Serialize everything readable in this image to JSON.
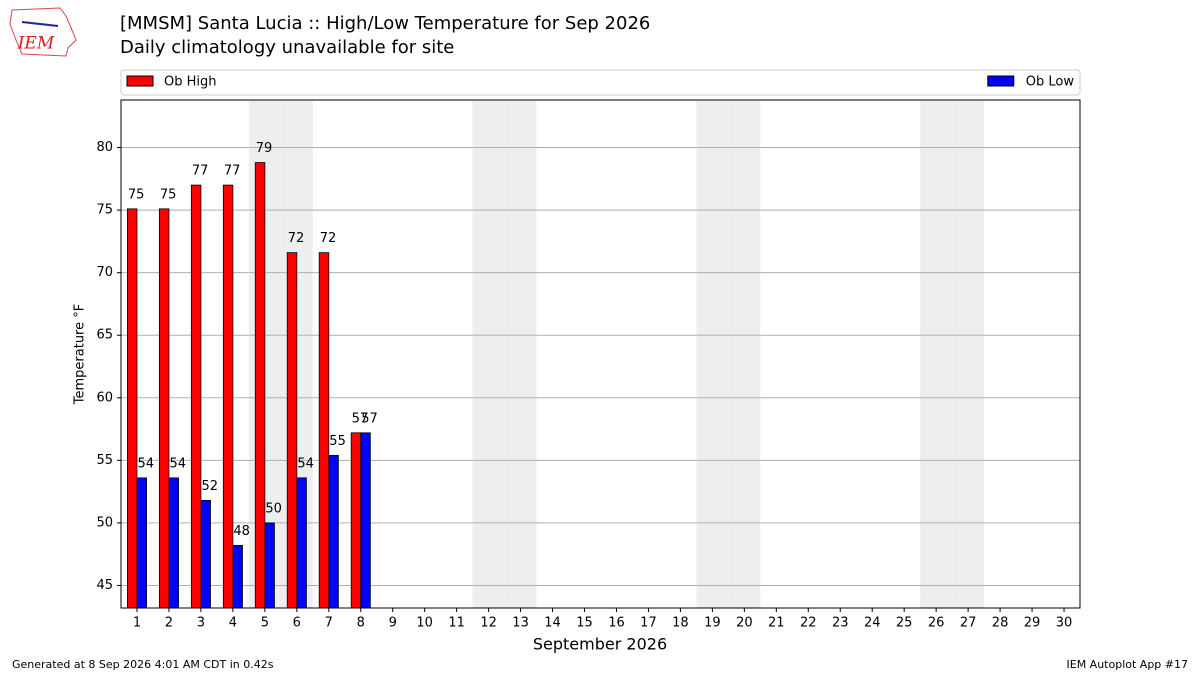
{
  "chart_data": {
    "type": "bar",
    "title": "[MMSM] Santa Lucia :: High/Low Temperature for Sep 2026",
    "subtitle": "Daily climatology unavailable for site",
    "logo_text": "IEM",
    "x_label": "September 2026",
    "y_label": "Temperature °F",
    "footer_left": "Generated at 8 Sep 2026 4:01 AM CDT in 0.42s",
    "footer_right": "IEM Autoplot App #17",
    "categories": [
      "1",
      "2",
      "3",
      "4",
      "5",
      "6",
      "7",
      "8",
      "9",
      "10",
      "11",
      "12",
      "13",
      "14",
      "15",
      "16",
      "17",
      "18",
      "19",
      "20",
      "21",
      "22",
      "23",
      "24",
      "25",
      "26",
      "27",
      "28",
      "29",
      "30"
    ],
    "shaded_days": [
      5,
      6,
      12,
      13,
      19,
      20,
      26,
      27
    ],
    "series": [
      {
        "name": "Ob High",
        "color": "#ff0000",
        "values": [
          75.1,
          75.1,
          77.0,
          77.0,
          78.8,
          71.6,
          71.6,
          57.2,
          null,
          null,
          null,
          null,
          null,
          null,
          null,
          null,
          null,
          null,
          null,
          null,
          null,
          null,
          null,
          null,
          null,
          null,
          null,
          null,
          null,
          null
        ],
        "value_labels": [
          "75",
          "75",
          "77",
          "77",
          "79",
          "72",
          "72",
          "57",
          null,
          null,
          null,
          null,
          null,
          null,
          null,
          null,
          null,
          null,
          null,
          null,
          null,
          null,
          null,
          null,
          null,
          null,
          null,
          null,
          null,
          null
        ]
      },
      {
        "name": "Ob Low",
        "color": "#0000ff",
        "values": [
          53.6,
          53.6,
          51.8,
          48.2,
          50.0,
          53.6,
          55.4,
          57.2,
          null,
          null,
          null,
          null,
          null,
          null,
          null,
          null,
          null,
          null,
          null,
          null,
          null,
          null,
          null,
          null,
          null,
          null,
          null,
          null,
          null,
          null
        ],
        "value_labels": [
          "54",
          "54",
          "52",
          "48",
          "50",
          "54",
          "55",
          "57",
          null,
          null,
          null,
          null,
          null,
          null,
          null,
          null,
          null,
          null,
          null,
          null,
          null,
          null,
          null,
          null,
          null,
          null,
          null,
          null,
          null,
          null
        ]
      }
    ],
    "ylim": [
      43.2,
      83.8
    ],
    "yticks": [
      45,
      50,
      55,
      60,
      65,
      70,
      75,
      80
    ],
    "grid": true,
    "legend": "top"
  }
}
